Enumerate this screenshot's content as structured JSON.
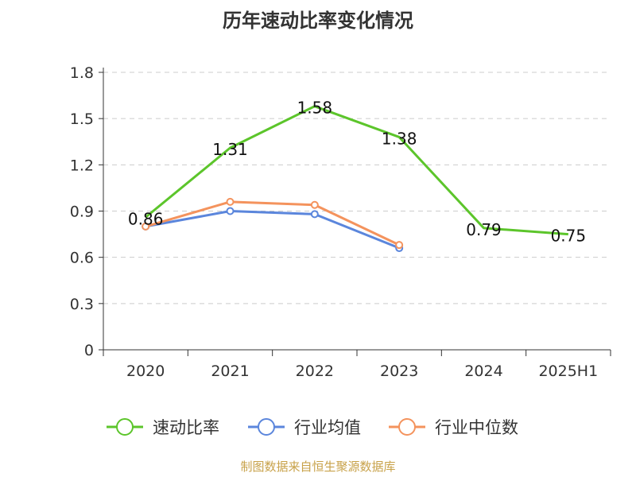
{
  "chart_data": {
    "type": "line",
    "title": "历年速动比率变化情况",
    "categories": [
      "2020",
      "2021",
      "2022",
      "2023",
      "2024",
      "2025H1"
    ],
    "ylim": [
      0,
      1.8
    ],
    "yticks": [
      "0",
      "0.3",
      "0.6",
      "0.9",
      "1.2",
      "1.5",
      "1.8"
    ],
    "grid": true,
    "legend_position": "bottom",
    "series": [
      {
        "name": "速动比率",
        "color": "#5cc52b",
        "values": [
          0.86,
          1.31,
          1.58,
          1.38,
          0.79,
          0.75
        ],
        "labels": [
          "0.86",
          "1.31",
          "1.58",
          "1.38",
          "0.79",
          "0.75"
        ]
      },
      {
        "name": "行业均值",
        "color": "#5b86dc",
        "values": [
          0.8,
          0.9,
          0.88,
          0.66,
          null,
          null
        ]
      },
      {
        "name": "行业中位数",
        "color": "#f4935d",
        "values": [
          0.8,
          0.96,
          0.94,
          0.68,
          null,
          null
        ]
      }
    ]
  },
  "footer": {
    "source": "制图数据来自恒生聚源数据库"
  }
}
